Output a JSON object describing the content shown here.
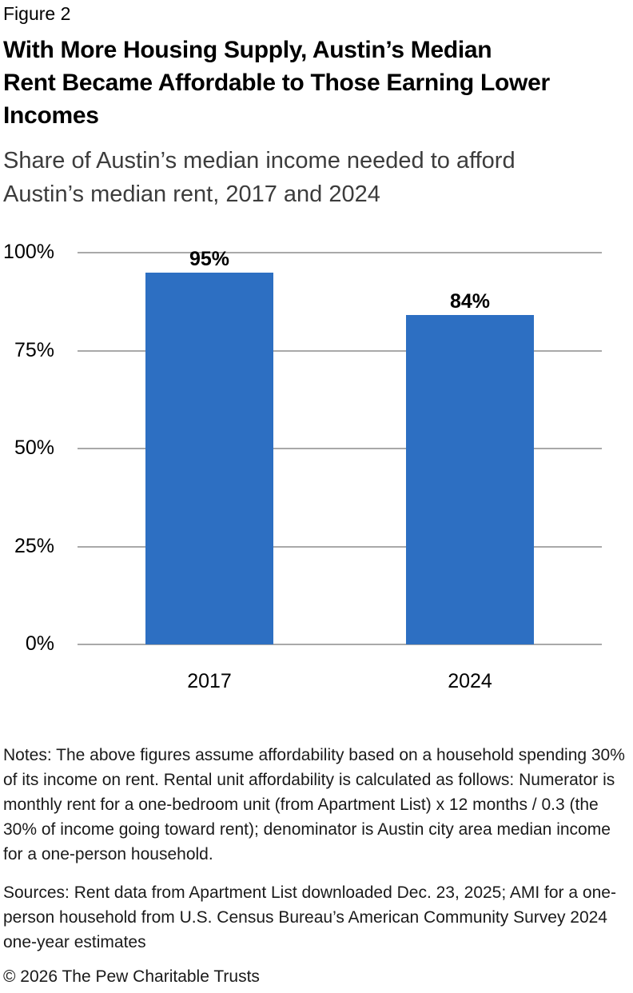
{
  "header": {
    "figure_label": "Figure 2",
    "title_lines": [
      "With More Housing Supply, Austin’s Median",
      "Rent Became Affordable to Those Earning Lower",
      "Incomes"
    ],
    "subtitle_lines": [
      "Share of Austin’s median income needed to afford",
      "Austin’s median rent, 2017 and 2024"
    ]
  },
  "chart_data": {
    "type": "bar",
    "title": "",
    "xlabel": "",
    "ylabel": "",
    "categories": [
      "2017",
      "2024"
    ],
    "values": [
      95,
      84
    ],
    "value_labels": [
      "95%",
      "84%"
    ],
    "y_ticks": [
      {
        "value": 100,
        "label": "100%"
      },
      {
        "value": 75,
        "label": "75%"
      },
      {
        "value": 50,
        "label": "50%"
      },
      {
        "value": 25,
        "label": "25%"
      },
      {
        "value": 0,
        "label": "0%"
      }
    ],
    "ylim": [
      0,
      100
    ],
    "grid": "horizontal",
    "legend": "none",
    "bar_color": "#2D6FC2",
    "gridline_color": "#A9A9A9",
    "label_color": "#000000"
  },
  "footer": {
    "notes": "Notes: The above figures assume affordability based on a household spending 30% of its income on rent. Rental unit affordability is calculated as follows: Numerator is monthly rent for a one-bedroom unit (from Apartment List) x 12 months / 0.3 (the 30% of income going toward rent); denominator is Austin city area median income for a one-person household.",
    "sources": "Sources: Rent data from Apartment List downloaded Dec. 23, 2025; AMI for a one-person household from U.S. Census Bureau’s American Community Survey 2024 one-year estimates",
    "copyright": "© 2026 The Pew Charitable Trusts"
  }
}
